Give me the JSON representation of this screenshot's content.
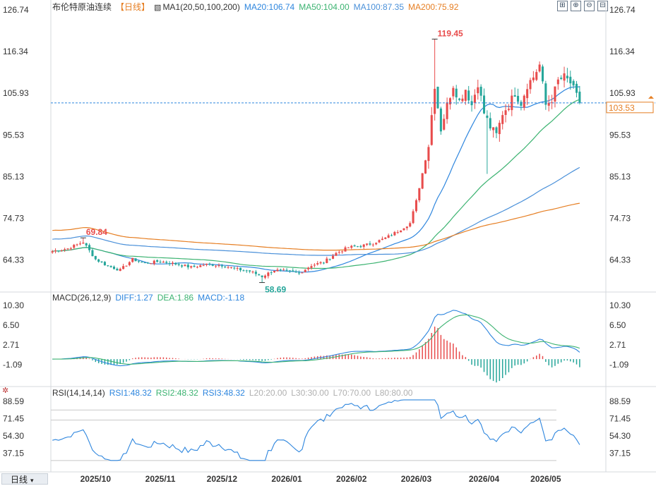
{
  "header": {
    "instrument": "布伦特原油连续",
    "period_tag": "【日线】",
    "ma_label": "MA1(20,50,100,200)",
    "ma_values": [
      {
        "text": "MA20:106.74",
        "color": "#2e86de"
      },
      {
        "text": "MA50:104.00",
        "color": "#3cb371"
      },
      {
        "text": "MA100:87.35",
        "color": "#4a90d9"
      },
      {
        "text": "MA200:75.92",
        "color": "#e67e22"
      }
    ]
  },
  "macd_header": {
    "label": "MACD(26,12,9)",
    "values": [
      {
        "text": "DIFF:1.27",
        "color": "#2e86de"
      },
      {
        "text": "DEA:1.86",
        "color": "#3cb371"
      },
      {
        "text": "MACD:-1.18",
        "color": "#2e86de"
      }
    ]
  },
  "rsi_header": {
    "label": "RSI(14,14,14)",
    "values": [
      {
        "text": "RSI1:48.32",
        "color": "#2e86de"
      },
      {
        "text": "RSI2:48.32",
        "color": "#3cb371"
      },
      {
        "text": "RSI3:48.32",
        "color": "#2e86de"
      },
      {
        "text": "L20:20.00",
        "color": "#b0b0b0"
      },
      {
        "text": "L30:30.00",
        "color": "#b0b0b0"
      },
      {
        "text": "L70:70.00",
        "color": "#b0b0b0"
      },
      {
        "text": "L80:80.00",
        "color": "#b0b0b0"
      }
    ]
  },
  "toolbar": {
    "icons": [
      "crosshair-icon",
      "zoom-in-icon",
      "zoom-out-icon",
      "collapse-icon"
    ],
    "glyphs": [
      "⊞",
      "⊕",
      "⊖",
      "⊟"
    ]
  },
  "period_button": "日线",
  "chart_data": {
    "type": "candlestick",
    "colors": {
      "up": "#e84c4c",
      "down": "#26a69a",
      "ma20": "#2e86de",
      "ma50": "#3cb371",
      "ma100": "#4a90d9",
      "ma200": "#e67e22"
    },
    "x_ticks": [
      "2025/10",
      "2025/11",
      "2025/12",
      "2026/01",
      "2026/02",
      "2026/03",
      "2026/04",
      "2026/05"
    ],
    "x_tick_index": [
      14,
      35,
      55,
      76,
      97,
      118,
      140,
      160
    ],
    "count": 180,
    "price_axis": {
      "ticks": [
        126.74,
        116.34,
        105.93,
        95.53,
        85.13,
        74.73,
        64.33
      ],
      "min": 56.5,
      "max": 126.74
    },
    "current_price": "103.53",
    "last_price": 103.53,
    "annotations": {
      "high": {
        "text": "119.45",
        "value": 119.45,
        "index": 124
      },
      "low": {
        "text": "58.69",
        "value": 58.69,
        "index": 68
      },
      "local_high": {
        "text": "69.84",
        "value": 69.84,
        "index": 10
      }
    },
    "anchors": [
      [
        0,
        66.5
      ],
      [
        5,
        67.2
      ],
      [
        10,
        68.8
      ],
      [
        14,
        64.5
      ],
      [
        18,
        62.8
      ],
      [
        22,
        61.8
      ],
      [
        26,
        64.5
      ],
      [
        30,
        63.5
      ],
      [
        35,
        64.0
      ],
      [
        40,
        63.3
      ],
      [
        45,
        62.5
      ],
      [
        50,
        63.2
      ],
      [
        55,
        63.0
      ],
      [
        60,
        62.0
      ],
      [
        64,
        61.5
      ],
      [
        68,
        60.2
      ],
      [
        72,
        61.8
      ],
      [
        76,
        61.5
      ],
      [
        80,
        61.0
      ],
      [
        84,
        63.0
      ],
      [
        88,
        63.8
      ],
      [
        92,
        66.0
      ],
      [
        96,
        67.5
      ],
      [
        100,
        67.8
      ],
      [
        104,
        68.5
      ],
      [
        108,
        69.8
      ],
      [
        112,
        71.5
      ],
      [
        116,
        73.5
      ],
      [
        118,
        79.0
      ],
      [
        120,
        86.0
      ],
      [
        122,
        93.0
      ],
      [
        124,
        108.0
      ],
      [
        126,
        97.0
      ],
      [
        128,
        103.0
      ],
      [
        130,
        108.0
      ],
      [
        132,
        104.0
      ],
      [
        134,
        107.0
      ],
      [
        136,
        103.0
      ],
      [
        138,
        108.5
      ],
      [
        140,
        101.0
      ],
      [
        142,
        97.5
      ],
      [
        144,
        95.5
      ],
      [
        146,
        101.0
      ],
      [
        148,
        103.0
      ],
      [
        150,
        106.0
      ],
      [
        152,
        103.5
      ],
      [
        154,
        108.0
      ],
      [
        156,
        110.0
      ],
      [
        158,
        113.0
      ],
      [
        160,
        103.0
      ],
      [
        162,
        104.5
      ],
      [
        164,
        109.0
      ],
      [
        166,
        110.0
      ],
      [
        168,
        108.5
      ],
      [
        171,
        103.53
      ]
    ],
    "macd_axis": {
      "ticks": [
        10.3,
        6.5,
        2.71,
        -1.09
      ],
      "min": -5.0,
      "max": 11.0
    },
    "rsi_axis": {
      "ticks": [
        88.59,
        71.45,
        54.3,
        37.15
      ],
      "min": 25.0,
      "max": 92.0
    }
  }
}
